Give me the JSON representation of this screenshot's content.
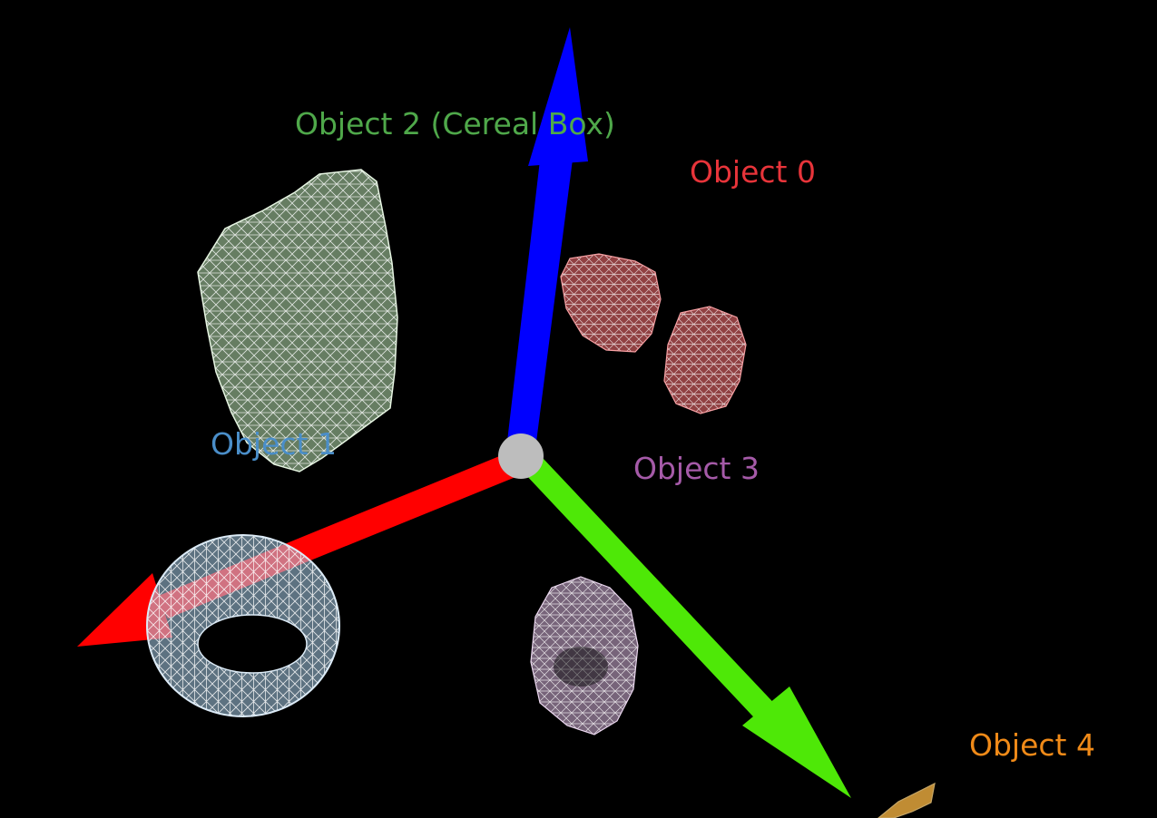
{
  "scene": {
    "background": "#000000",
    "axes": {
      "x_color": "#ff0000",
      "y_color": "#4ee807",
      "z_color": "#0000ff",
      "origin_color": "#bdbdbd"
    },
    "objects": [
      {
        "id": "object-0",
        "label": "Object 0",
        "color": "#e8343a",
        "mesh_color": "#f06a6e",
        "shape": "two-blobs"
      },
      {
        "id": "object-1",
        "label": "Object 1",
        "color": "#4a8ec9",
        "mesh_color": "#a9cfeb",
        "shape": "torus"
      },
      {
        "id": "object-2",
        "label": "Object 2 (Cereal Box)",
        "color": "#4fa84a",
        "mesh_color": "#b9e3b2",
        "shape": "box"
      },
      {
        "id": "object-3",
        "label": "Object 3",
        "color": "#a55aa8",
        "mesh_color": "#d8b7df",
        "shape": "cylinder"
      },
      {
        "id": "object-4",
        "label": "Object 4",
        "color": "#f08a18",
        "mesh_color": "#f0b040",
        "shape": "fragment"
      }
    ]
  }
}
